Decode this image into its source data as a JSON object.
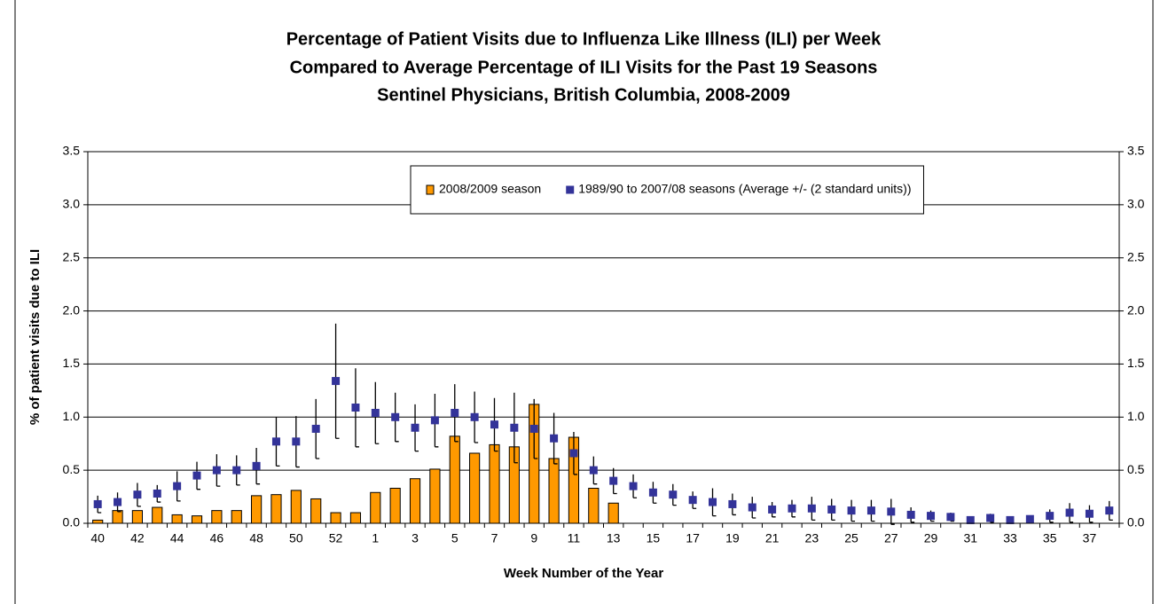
{
  "chart_data": {
    "type": "bar",
    "title": [
      "Percentage of Patient Visits due to Influenza Like Illness (ILI) per Week",
      "Compared to Average Percentage of ILI Visits for the Past 19 Seasons",
      "Sentinel Physicians, British Columbia, 2008-2009"
    ],
    "x_label": "Week Number of the Year",
    "y_label": "% of patient visits due to ILI",
    "categories": [
      "40",
      null,
      "42",
      null,
      "44",
      null,
      "46",
      null,
      "48",
      null,
      "50",
      null,
      "52",
      null,
      "1",
      null,
      "3",
      null,
      "5",
      null,
      "7",
      null,
      "9",
      null,
      "11",
      null,
      "13",
      null,
      "15",
      null,
      "17",
      null,
      "19",
      null,
      "21",
      null,
      "23",
      null,
      "25",
      null,
      "27",
      null,
      "29",
      null,
      "31",
      null,
      "33",
      null,
      "35",
      null,
      "37",
      null
    ],
    "series": [
      {
        "name": "2008/2009 season",
        "type": "bar",
        "color": "#ff9900",
        "values": [
          0.03,
          0.12,
          0.12,
          0.15,
          0.08,
          0.07,
          0.12,
          0.12,
          0.26,
          0.27,
          0.31,
          0.23,
          0.1,
          0.1,
          0.29,
          0.33,
          0.42,
          0.51,
          0.82,
          0.66,
          0.74,
          0.72,
          1.12,
          0.61,
          0.81,
          0.33,
          0.19,
          null,
          null,
          null,
          null,
          null,
          null,
          null,
          null,
          null,
          null,
          null,
          null,
          null,
          null,
          null,
          null,
          null,
          null,
          null,
          null,
          null,
          null,
          null,
          null,
          null
        ]
      },
      {
        "name": "1989/90 to 2007/08 seasons (Average +/- (2 standard units))",
        "type": "scatter",
        "color": "#333399",
        "values": [
          0.18,
          0.2,
          0.27,
          0.28,
          0.35,
          0.45,
          0.5,
          0.5,
          0.54,
          0.77,
          0.77,
          0.89,
          1.34,
          1.09,
          1.04,
          1.0,
          0.9,
          0.97,
          1.04,
          1.0,
          0.93,
          0.9,
          0.89,
          0.8,
          0.66,
          0.5,
          0.4,
          0.35,
          0.29,
          0.27,
          0.22,
          0.2,
          0.18,
          0.15,
          0.13,
          0.14,
          0.14,
          0.13,
          0.12,
          0.12,
          0.11,
          0.08,
          0.07,
          0.06,
          0.03,
          0.05,
          0.03,
          0.04,
          0.07,
          0.1,
          0.09,
          0.12
        ],
        "errors": [
          0.08,
          0.09,
          0.11,
          0.08,
          0.14,
          0.13,
          0.15,
          0.14,
          0.17,
          0.23,
          0.24,
          0.28,
          0.54,
          0.37,
          0.29,
          0.23,
          0.22,
          0.25,
          0.27,
          0.24,
          0.25,
          0.33,
          0.28,
          0.24,
          0.2,
          0.13,
          0.12,
          0.11,
          0.1,
          0.1,
          0.08,
          0.13,
          0.1,
          0.1,
          0.07,
          0.08,
          0.11,
          0.1,
          0.1,
          0.1,
          0.12,
          0.07,
          0.05,
          0.04,
          0.03,
          0.04,
          0.03,
          0.03,
          0.06,
          0.09,
          0.08,
          0.09
        ]
      }
    ],
    "ylim": [
      0,
      3.5
    ],
    "yticks": [
      {
        "value": 0,
        "label": "0.0"
      },
      0.5,
      {
        "value": 1,
        "label": "1.0"
      },
      1.5,
      {
        "value": 2,
        "label": "2.0"
      },
      2.5,
      {
        "value": 3,
        "label": "3.0"
      },
      3.5
    ],
    "y2lim": [
      0,
      3.5
    ],
    "y2ticks": [
      {
        "value": 0,
        "label": "0.0"
      },
      0.5,
      {
        "value": 1,
        "label": "1.0"
      },
      1.5,
      {
        "value": 2,
        "label": "2.0"
      },
      2.5,
      {
        "value": 3,
        "label": "3.0"
      },
      3.5
    ],
    "grid": true,
    "legend": "top"
  }
}
